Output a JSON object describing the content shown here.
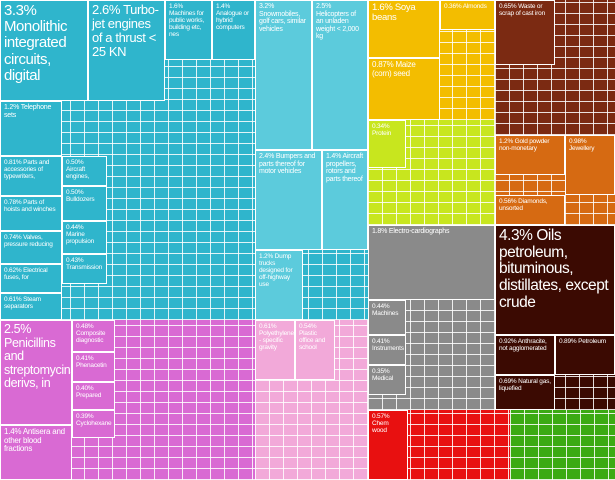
{
  "chart_data": {
    "type": "treemap",
    "categories": [
      "Monolithic integrated circuits, digital",
      "Turbo-jet engines of a thrust < 25 KN",
      "Machines for public works, building etc, nes",
      "Analogue or hybrid computers",
      "Telephone sets",
      "Parts and accessories of typewriters,",
      "Parts of hoists and winches",
      "Valves, pressure reducing",
      "Electrical fuses, for",
      "Steam separators",
      "Aircraft engines,",
      "Bulldozers",
      "Marine propulsion",
      "Transmission",
      "Snowmobiles, golf cars, similar vehicles",
      "Helicopters of an unladen weight < 2,000 kg",
      "Bumpers and parts thereof for motor vehicles",
      "Aircraft propellers, rotors and parts thereof",
      "Dump trucks designed for off-highway use",
      "Penicillins and streptomycins, derivs, in",
      "Antisera and other blood fractions",
      "Composite diagnostic",
      "Phenacetin",
      "Prepared",
      "Cyclohexane",
      "Polyethylene - specific gravity",
      "Plastic office and school",
      "Soya beans",
      "Maize (corn) seed",
      "Almonds",
      "Protein",
      "Waste or scrap of cast iron",
      "Gold powder non-monetary",
      "Jewellery",
      "Diamonds, unsorted",
      "Electro-cardiographs",
      "Machines",
      "Instruments",
      "Medical",
      "Oils petroleum, bituminous, distillates, except crude",
      "Anthracite, not agglomerated",
      "Petroleum",
      "Natural gas, liquefied",
      "Chem wood"
    ],
    "values": [
      3.3,
      2.6,
      1.6,
      1.4,
      1.2,
      0.81,
      0.78,
      0.74,
      0.62,
      0.61,
      0.5,
      0.5,
      0.44,
      0.43,
      3.2,
      2.5,
      2.4,
      1.4,
      1.2,
      2.5,
      1.4,
      0.48,
      0.41,
      0.4,
      0.39,
      0.61,
      0.54,
      1.6,
      0.87,
      0.36,
      0.34,
      0.65,
      1.2,
      0.98,
      0.56,
      1.8,
      0.44,
      0.41,
      0.35,
      4.3,
      0.92,
      0.89,
      0.69,
      0.57
    ],
    "value_labels": [
      "3.3%",
      "2.6%",
      "1.6%",
      "1.4%",
      "1.2%",
      "0.81%",
      "0.78%",
      "0.74%",
      "0.62%",
      "0.61%",
      "0.50%",
      "0.50%",
      "0.44%",
      "0.43%",
      "3.2%",
      "2.5%",
      "2.4%",
      "1.4%",
      "1.2%",
      "2.5%",
      "1.4%",
      "0.48%",
      "0.41%",
      "0.40%",
      "0.39%",
      "0.61%",
      "0.54%",
      "1.6%",
      "0.87%",
      "0.36%",
      "0.34%",
      "0.65%",
      "1.2%",
      "0.98%",
      "0.56%",
      "1.8%",
      "0.44%",
      "0.41%",
      "0.35%",
      "4.3%",
      "0.92%",
      "0.89%",
      "0.69%",
      "0.57%"
    ],
    "colors": [
      "#2fb5cc",
      "#2fb5cc",
      "#2fb5cc",
      "#2fb5cc",
      "#2fb5cc",
      "#2fb5cc",
      "#2fb5cc",
      "#2fb5cc",
      "#2fb5cc",
      "#2fb5cc",
      "#2fb5cc",
      "#2fb5cc",
      "#2fb5cc",
      "#2fb5cc",
      "#5ccbdc",
      "#5ccbdc",
      "#5ccbdc",
      "#5ccbdc",
      "#5ccbdc",
      "#d96ad3",
      "#d96ad3",
      "#d96ad3",
      "#d96ad3",
      "#d96ad3",
      "#d96ad3",
      "#f2a9d9",
      "#f2a9d9",
      "#f3bd00",
      "#f3bd00",
      "#f3bd00",
      "#c8e61e",
      "#7b2a12",
      "#d66a12",
      "#d66a12",
      "#d66a12",
      "#8a8a8a",
      "#8a8a8a",
      "#8a8a8a",
      "#8a8a8a",
      "#3b0a02",
      "#3b0a02",
      "#3b0a02",
      "#3b0a02",
      "#e81010"
    ]
  }
}
